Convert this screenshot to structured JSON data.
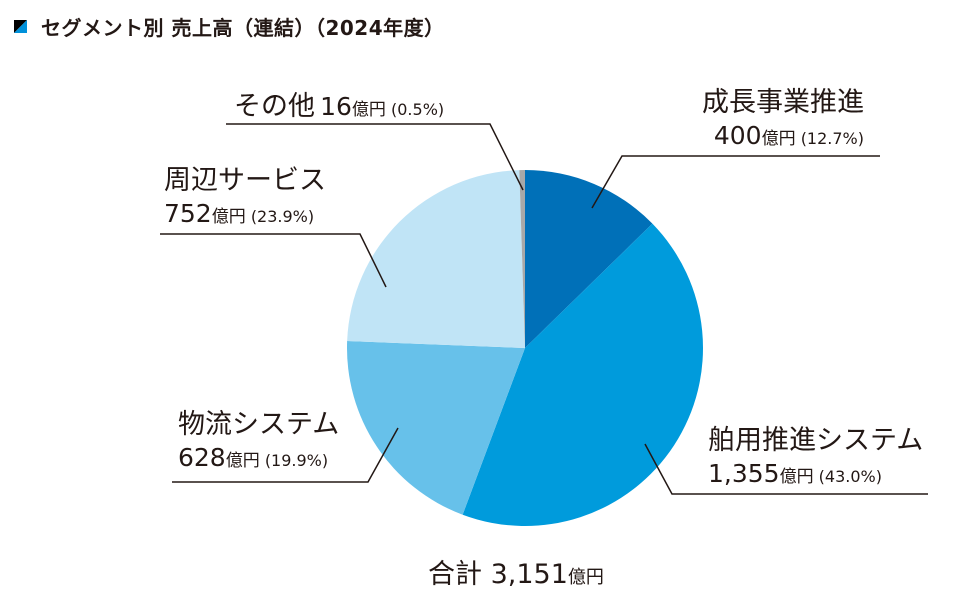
{
  "title": "セグメント別 売上高（連結）（2024年度）",
  "chart_data": {
    "type": "pie",
    "title": "セグメント別 売上高（連結）（2024年度）",
    "unit": "億円",
    "start_angle_deg": 0,
    "direction": "clockwise",
    "slices": [
      {
        "label": "成長事業推進",
        "value": 400,
        "value_text": "400",
        "percent": 12.7,
        "percent_text": "(12.7%)",
        "color": "#0070B8"
      },
      {
        "label": "舶用推進システム",
        "value": 1355,
        "value_text": "1,355",
        "percent": 43.0,
        "percent_text": "(43.0%)",
        "color": "#009BDC"
      },
      {
        "label": "物流システム",
        "value": 628,
        "value_text": "628",
        "percent": 19.9,
        "percent_text": "(19.9%)",
        "color": "#67C1EA"
      },
      {
        "label": "周辺サービス",
        "value": 752,
        "value_text": "752",
        "percent": 23.9,
        "percent_text": "(23.9%)",
        "color": "#C0E4F6"
      },
      {
        "label": "その他",
        "value": 16,
        "value_text": "16",
        "percent": 0.5,
        "percent_text": "(0.5%)",
        "color": "#A8A8A8"
      }
    ],
    "total": {
      "label": "合計",
      "value": 3151,
      "value_text": "3,151",
      "unit": "億円"
    }
  }
}
